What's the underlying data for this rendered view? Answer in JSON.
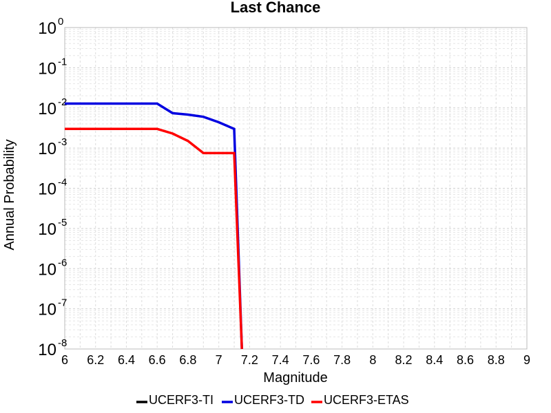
{
  "chart_data": {
    "type": "line",
    "title": "Last Chance",
    "xlabel": "Magnitude",
    "ylabel": "Annual Probability",
    "xlim": [
      6,
      9
    ],
    "ylim": [
      1e-08,
      1
    ],
    "yscale": "log",
    "grid": true,
    "legend_position": "bottom",
    "x_ticks": [
      "6",
      "6.2",
      "6.4",
      "6.6",
      "6.8",
      "7",
      "7.2",
      "7.4",
      "7.6",
      "7.8",
      "8",
      "8.2",
      "8.4",
      "8.6",
      "8.8",
      "9"
    ],
    "y_ticks": [
      {
        "base": "10",
        "exp": "0",
        "value": 1
      },
      {
        "base": "10",
        "exp": "-1",
        "value": 0.1
      },
      {
        "base": "10",
        "exp": "-2",
        "value": 0.01
      },
      {
        "base": "10",
        "exp": "-3",
        "value": 0.001
      },
      {
        "base": "10",
        "exp": "-4",
        "value": 0.0001
      },
      {
        "base": "10",
        "exp": "-5",
        "value": 1e-05
      },
      {
        "base": "10",
        "exp": "-6",
        "value": 1e-06
      },
      {
        "base": "10",
        "exp": "-7",
        "value": 1e-07
      },
      {
        "base": "10",
        "exp": "-8",
        "value": 1e-08
      }
    ],
    "series": [
      {
        "name": "UCERF3-TI",
        "color": "#000000",
        "points": []
      },
      {
        "name": "UCERF3-TD",
        "color": "#0000e0",
        "points": [
          [
            6.0,
            0.0128
          ],
          [
            6.1,
            0.0128
          ],
          [
            6.2,
            0.0128
          ],
          [
            6.3,
            0.0128
          ],
          [
            6.4,
            0.0128
          ],
          [
            6.5,
            0.0128
          ],
          [
            6.6,
            0.0128
          ],
          [
            6.7,
            0.0074
          ],
          [
            6.8,
            0.0068
          ],
          [
            6.9,
            0.006
          ],
          [
            7.0,
            0.0044
          ],
          [
            7.1,
            0.003
          ],
          [
            7.15,
            1e-08
          ]
        ]
      },
      {
        "name": "UCERF3-ETAS",
        "color": "#ff0000",
        "points": [
          [
            6.0,
            0.003
          ],
          [
            6.1,
            0.003
          ],
          [
            6.2,
            0.003
          ],
          [
            6.3,
            0.003
          ],
          [
            6.4,
            0.003
          ],
          [
            6.5,
            0.003
          ],
          [
            6.6,
            0.003
          ],
          [
            6.7,
            0.0023
          ],
          [
            6.8,
            0.0015
          ],
          [
            6.9,
            0.00075
          ],
          [
            7.0,
            0.00075
          ],
          [
            7.1,
            0.00075
          ],
          [
            7.15,
            1e-08
          ]
        ]
      }
    ]
  }
}
